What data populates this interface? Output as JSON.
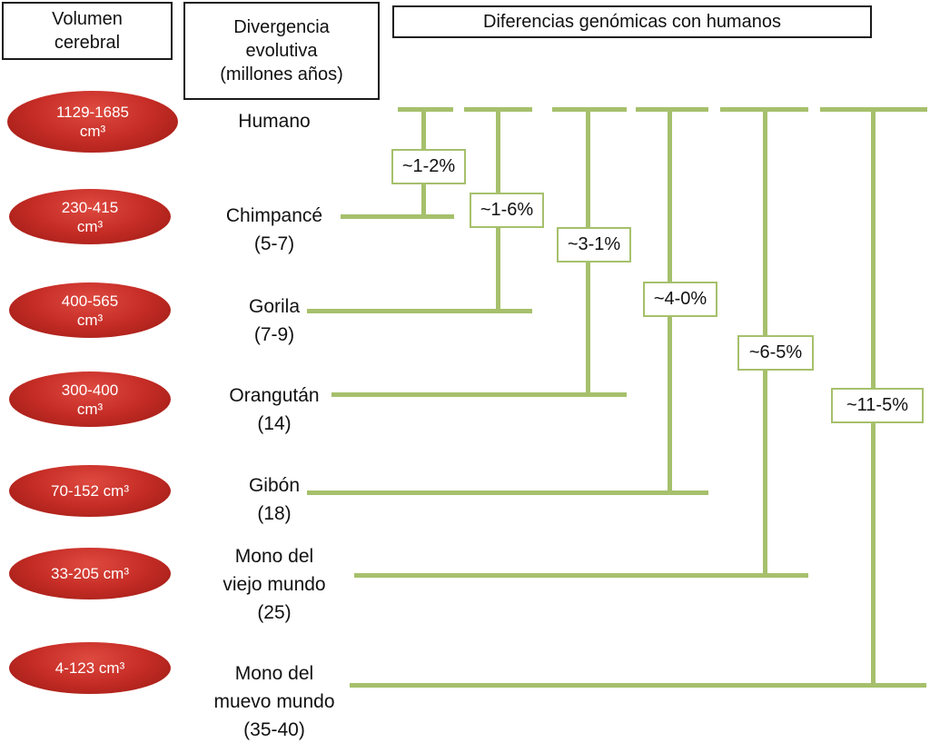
{
  "headers": {
    "brain_volume": "Volumen\ncerebral",
    "divergence": "Divergencia\nevolutiva\n(millones años)",
    "genomic": "Diferencias genómicas con humanos"
  },
  "species": [
    {
      "volume": "1129-1685\ncm³",
      "name": "Humano"
    },
    {
      "volume": "230-415\ncm³",
      "name": "Chimpancé\n(5-7)"
    },
    {
      "volume": "400-565\ncm³",
      "name": "Gorila\n(7-9)"
    },
    {
      "volume": "300-400\ncm³",
      "name": "Orangután\n(14)"
    },
    {
      "volume": "70-152 cm³",
      "name": "Gibón\n(18)"
    },
    {
      "volume": "33-205 cm³",
      "name": "Mono del\nviejo mundo\n(25)"
    },
    {
      "volume": "4-123 cm³",
      "name": "Mono del\nmuevo mundo\n(35-40)"
    }
  ],
  "genomic_differences": [
    {
      "label": "~1-2%"
    },
    {
      "label": "~1-6%"
    },
    {
      "label": "~3-1%"
    },
    {
      "label": "~4-0%"
    },
    {
      "label": "~6-5%"
    },
    {
      "label": "~11-5%"
    }
  ],
  "colors": {
    "tree_green": "#a6c06c",
    "ellipse_red": "#c62d26",
    "header_border": "#1a1a1a",
    "text": "#111111"
  }
}
